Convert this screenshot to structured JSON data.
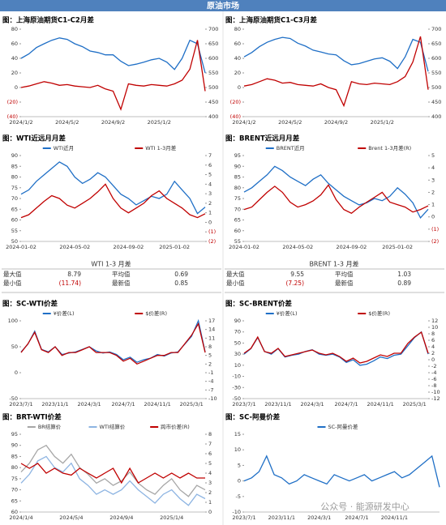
{
  "header": "原油市场",
  "watermark": "公众号 · 能源研发中心",
  "tables": [
    {
      "title": "WTI 1-3 月差",
      "rows": [
        [
          "最大值",
          "8.79",
          "平均值",
          "0.69"
        ],
        [
          "最小值",
          "(11.74)",
          "最新值",
          "0.85"
        ]
      ]
    },
    {
      "title": "BRENT 1-3 月差",
      "rows": [
        [
          "最大值",
          "9.55",
          "平均值",
          "1.03"
        ],
        [
          "最小值",
          "(7.25)",
          "最新值",
          "0.89"
        ]
      ]
    }
  ],
  "chart_data": [
    {
      "type": "line",
      "title": "图：上海原油期货C1-C2月差",
      "categories": [
        "2024/1/2",
        null,
        null,
        null,
        null,
        null,
        "2024/5/2",
        null,
        null,
        null,
        null,
        null,
        "2024/9/2",
        null,
        null,
        null,
        null,
        null,
        "2025/1/2",
        null,
        null,
        null,
        null,
        null,
        null
      ],
      "series": [
        {
          "color": "#1f6fc6",
          "axis": "y2",
          "values": [
            600,
            615,
            637,
            650,
            662,
            670,
            665,
            650,
            640,
            625,
            620,
            612,
            612,
            590,
            575,
            580,
            587,
            595,
            600,
            587,
            562,
            600,
            662,
            650,
            550
          ]
        },
        {
          "color": "#c00000",
          "values": [
            0,
            2,
            5,
            8,
            6,
            3,
            4,
            2,
            1,
            0,
            3,
            -2,
            -5,
            -30,
            5,
            3,
            2,
            4,
            3,
            2,
            5,
            10,
            25,
            65,
            -5
          ]
        }
      ],
      "ylim": [
        -40,
        80
      ],
      "yticks": [
        {
          "value": -40,
          "label": "(40)"
        },
        {
          "value": -20,
          "label": "(20)"
        },
        0,
        20,
        40,
        60,
        80
      ],
      "y2lim": [
        400,
        700
      ],
      "y2ticks": [
        400,
        450,
        500,
        550,
        600,
        650,
        700
      ]
    },
    {
      "type": "line",
      "title": "图：上海原油期货C1-C3月差",
      "categories": [
        "2024/1/2",
        null,
        null,
        null,
        null,
        null,
        "2024/5/2",
        null,
        null,
        null,
        null,
        null,
        "2024/9/2",
        null,
        null,
        null,
        null,
        null,
        "2025/1/2",
        null,
        null,
        null,
        null,
        null,
        null
      ],
      "series": [
        {
          "color": "#1f6fc6",
          "axis": "y2",
          "values": [
            605,
            620,
            640,
            655,
            665,
            672,
            668,
            652,
            642,
            628,
            622,
            615,
            612,
            592,
            578,
            582,
            590,
            598,
            602,
            590,
            565,
            605,
            665,
            655,
            555
          ]
        },
        {
          "color": "#c00000",
          "values": [
            2,
            4,
            8,
            12,
            10,
            6,
            7,
            4,
            3,
            2,
            5,
            0,
            -3,
            -25,
            8,
            5,
            4,
            6,
            5,
            4,
            8,
            15,
            35,
            70,
            -3
          ]
        }
      ],
      "ylim": [
        -40,
        80
      ],
      "yticks": [
        {
          "value": -40,
          "label": "(40)"
        },
        {
          "value": -20,
          "label": "(20)"
        },
        0,
        20,
        40,
        60,
        80
      ],
      "y2lim": [
        400,
        700
      ],
      "y2ticks": [
        400,
        450,
        500,
        550,
        600,
        650,
        700
      ]
    },
    {
      "type": "line",
      "title": "图：WTI近远月月差",
      "categories": [
        "2024-01-02",
        null,
        null,
        null,
        null,
        null,
        null,
        "2024-05-02",
        null,
        null,
        null,
        null,
        null,
        null,
        "2024-09-02",
        null,
        null,
        null,
        null,
        null,
        "2025-01-02",
        null,
        null,
        null,
        null
      ],
      "series": [
        {
          "name": "WTI近月",
          "color": "#1f6fc6",
          "values": [
            72,
            74,
            78,
            81,
            84,
            87,
            85,
            80,
            77,
            79,
            82,
            80,
            76,
            72,
            70,
            67,
            69,
            71,
            70,
            72,
            78,
            74,
            70,
            63,
            66
          ]
        },
        {
          "name": "WTI 1-3月差",
          "color": "#c00000",
          "axis": "y2",
          "values": [
            0.5,
            0.8,
            1.5,
            2.2,
            2.8,
            2.5,
            1.8,
            1.5,
            2.0,
            2.5,
            3.2,
            4.0,
            2.5,
            1.5,
            1.0,
            1.5,
            2.0,
            2.8,
            3.3,
            2.5,
            2.0,
            1.5,
            0.8,
            0.5,
            0.9
          ]
        }
      ],
      "ylim": [
        50,
        90
      ],
      "yticks": [
        50,
        55,
        60,
        65,
        70,
        75,
        80,
        85,
        90
      ],
      "y2lim": [
        -2,
        7
      ],
      "y2ticks": [
        {
          "value": -2,
          "label": "(2)"
        },
        {
          "value": -1,
          "label": "(1)"
        },
        0,
        1,
        2,
        3,
        4,
        5,
        6,
        7
      ]
    },
    {
      "type": "line",
      "title": "图：BRENT近远月月差",
      "categories": [
        "2024-01-02",
        null,
        null,
        null,
        null,
        null,
        null,
        "2024-05-02",
        null,
        null,
        null,
        null,
        null,
        null,
        "2024-09-02",
        null,
        null,
        null,
        null,
        null,
        "2025-01-02",
        null,
        null,
        null,
        null
      ],
      "series": [
        {
          "name": "BRENT近月",
          "color": "#1f6fc6",
          "values": [
            78,
            80,
            83,
            86,
            90,
            88,
            85,
            83,
            81,
            84,
            86,
            82,
            79,
            76,
            74,
            72,
            73,
            75,
            74,
            76,
            80,
            77,
            73,
            66,
            70
          ]
        },
        {
          "name": "Brent 1-3月差(R)",
          "color": "#c00000",
          "axis": "y2",
          "values": [
            0.6,
            0.8,
            1.4,
            2.0,
            2.5,
            2.0,
            1.2,
            0.8,
            1.0,
            1.3,
            1.8,
            2.6,
            1.4,
            0.6,
            0.3,
            0.8,
            1.2,
            1.6,
            2.0,
            1.2,
            1.0,
            0.8,
            0.4,
            0.6,
            0.9
          ]
        }
      ],
      "ylim": [
        55,
        95
      ],
      "yticks": [
        55,
        60,
        65,
        70,
        75,
        80,
        85,
        90,
        95
      ],
      "y2lim": [
        -2,
        5
      ],
      "y2ticks": [
        {
          "value": -2,
          "label": "(2)"
        },
        {
          "value": -1,
          "label": "(1)"
        },
        0,
        1,
        2,
        3,
        4,
        5
      ]
    },
    {
      "type": "line",
      "title": "图：SC-WTI价差",
      "categories": [
        "2023/7/1",
        null,
        null,
        null,
        null,
        "2023/11/1",
        null,
        null,
        null,
        null,
        "2024/3/1",
        null,
        null,
        null,
        null,
        "2024/7/1",
        null,
        null,
        null,
        null,
        "2024/11/1",
        null,
        null,
        null,
        null,
        "2025/3/1",
        null,
        null
      ],
      "series": [
        {
          "name": "¥价差(L)",
          "color": "#1f6fc6",
          "values": [
            40,
            55,
            80,
            45,
            40,
            50,
            35,
            38,
            40,
            45,
            50,
            42,
            38,
            40,
            35,
            25,
            30,
            20,
            25,
            28,
            35,
            32,
            38,
            40,
            55,
            70,
            100,
            40
          ]
        },
        {
          "name": "$价差(R)",
          "color": "#c00000",
          "axis": "y2",
          "values": [
            6,
            9,
            13,
            7,
            6,
            8,
            5,
            6,
            6,
            7,
            8,
            6,
            6,
            6,
            5,
            3,
            4,
            2,
            3,
            4,
            5,
            5,
            6,
            6,
            9,
            12,
            16,
            6
          ]
        }
      ],
      "ylim": [
        -50,
        100
      ],
      "yticks": [
        -50,
        0,
        50,
        100
      ],
      "y2lim": [
        -10,
        17
      ],
      "y2ticks": [
        -10,
        -7,
        -4,
        -1,
        2,
        5,
        8,
        11,
        14,
        17
      ]
    },
    {
      "type": "line",
      "title": "图：SC-BRENT价差",
      "categories": [
        "2023/7/1",
        null,
        null,
        null,
        null,
        "2023/11/1",
        null,
        null,
        null,
        null,
        "2024/3/1",
        null,
        null,
        null,
        null,
        "2024/7/1",
        null,
        null,
        null,
        null,
        "2024/11/1",
        null,
        null,
        null,
        null,
        "2025/3/1",
        null,
        null
      ],
      "series": [
        {
          "name": "¥价差(L)",
          "color": "#1f6fc6",
          "values": [
            30,
            40,
            60,
            35,
            30,
            40,
            25,
            28,
            30,
            35,
            38,
            30,
            28,
            30,
            25,
            15,
            20,
            10,
            12,
            18,
            25,
            22,
            28,
            30,
            45,
            60,
            70,
            30
          ]
        },
        {
          "name": "$价差(R)",
          "color": "#c00000",
          "axis": "y2",
          "values": [
            2,
            3.5,
            7,
            2.5,
            2,
            3.5,
            1,
            1.5,
            2,
            2.5,
            3,
            2,
            1.5,
            2,
            1,
            -0.5,
            0.5,
            -1,
            -0.5,
            0.5,
            1.5,
            1,
            2,
            2,
            5,
            7,
            8.5,
            2
          ]
        }
      ],
      "ylim": [
        -50,
        90
      ],
      "yticks": [
        -50,
        -30,
        -10,
        10,
        30,
        50,
        70,
        90
      ],
      "y2lim": [
        -12,
        12
      ],
      "y2ticks": [
        -12,
        -10,
        -8,
        -6,
        -4,
        -2,
        0,
        2,
        4,
        6,
        8,
        10,
        12
      ]
    },
    {
      "type": "line",
      "title": "图：BRT-WTI价差",
      "categories": [
        "2024/1/4",
        null,
        null,
        null,
        null,
        null,
        "2024/5/4",
        null,
        null,
        null,
        null,
        null,
        "2024/9/4",
        null,
        null,
        null,
        null,
        null,
        "2025/1/4",
        null,
        null,
        null,
        null
      ],
      "series": [
        {
          "name": "BR结算价",
          "color": "#a6a6a6",
          "values": [
            78,
            82,
            88,
            90,
            85,
            82,
            86,
            80,
            77,
            73,
            75,
            72,
            74,
            78,
            73,
            70,
            68,
            72,
            75,
            70,
            67,
            72,
            70
          ]
        },
        {
          "name": "WTI结算价",
          "color": "#8db4e2",
          "values": [
            73,
            77,
            83,
            85,
            80,
            78,
            82,
            75,
            72,
            68,
            70,
            68,
            70,
            74,
            70,
            67,
            64,
            68,
            70,
            66,
            63,
            68,
            66
          ]
        },
        {
          "name": "跨市价差(R)",
          "color": "#c00000",
          "axis": "y2",
          "values": [
            5,
            4.5,
            5,
            4,
            4.5,
            4,
            3.8,
            4.5,
            4,
            3.5,
            4,
            4.5,
            3,
            4.5,
            3,
            3.5,
            4,
            3.5,
            4,
            3.5,
            4,
            3.5,
            3.5
          ]
        }
      ],
      "ylim": [
        60,
        95
      ],
      "yticks": [
        60,
        65,
        70,
        75,
        80,
        85,
        90,
        95
      ],
      "y2lim": [
        0,
        8
      ],
      "y2ticks": [
        0,
        1,
        2,
        3,
        4,
        5,
        6,
        7,
        8
      ]
    },
    {
      "type": "line",
      "title": "图：SC-阿曼价差",
      "categories": [
        "2023/7/1",
        null,
        null,
        null,
        null,
        "2023/11/1",
        null,
        null,
        null,
        null,
        "2024/3/1",
        null,
        null,
        null,
        null,
        "2024/7/1",
        null,
        null,
        null,
        null,
        "2024/11/1",
        null,
        null,
        null,
        null,
        null,
        null
      ],
      "series": [
        {
          "name": "SC-阿曼价差",
          "color": "#1f6fc6",
          "values": [
            0,
            1,
            3,
            8,
            2,
            1,
            -1,
            0,
            2,
            1,
            0,
            -1,
            2,
            1,
            0,
            1,
            2,
            0,
            1,
            2,
            3,
            1,
            2,
            4,
            6,
            8,
            -2
          ]
        }
      ],
      "ylim": [
        -10,
        15
      ],
      "yticks": [
        -10,
        -5,
        0,
        5,
        10,
        15
      ]
    }
  ]
}
